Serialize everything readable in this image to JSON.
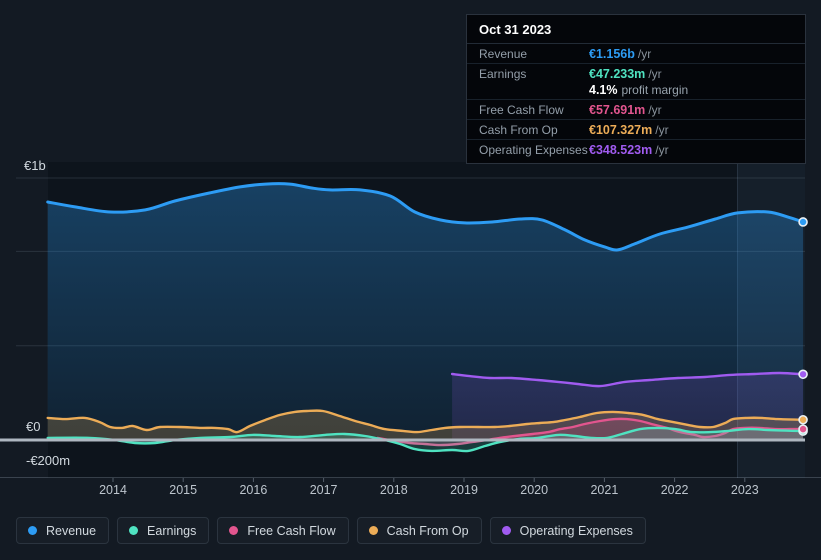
{
  "axis": {
    "y1": "€1b",
    "y0": "€0",
    "y_neg": "-€200m"
  },
  "tooltip": {
    "date": "Oct 31 2023",
    "rows": [
      {
        "label": "Revenue",
        "value": "€1.156b",
        "suffix": "/yr"
      },
      {
        "label": "Earnings",
        "value": "€47.233m",
        "suffix": "/yr",
        "sub_bold": "4.1%",
        "sub_text": "profit margin"
      },
      {
        "label": "Free Cash Flow",
        "value": "€57.691m",
        "suffix": "/yr"
      },
      {
        "label": "Cash From Op",
        "value": "€107.327m",
        "suffix": "/yr"
      },
      {
        "label": "Operating Expenses",
        "value": "€348.523m",
        "suffix": "/yr"
      }
    ]
  },
  "legend": [
    {
      "label": "Revenue"
    },
    {
      "label": "Earnings"
    },
    {
      "label": "Free Cash Flow"
    },
    {
      "label": "Cash From Op"
    },
    {
      "label": "Operating Expenses"
    }
  ],
  "chart_data": {
    "type": "area",
    "unit": "EUR millions",
    "title": "",
    "x_axis": {
      "ticks": [
        "2014",
        "2015",
        "2016",
        "2017",
        "2018",
        "2019",
        "2020",
        "2021",
        "2022",
        "2023"
      ],
      "range": [
        2013.05,
        2023.85
      ]
    },
    "y_axis": {
      "labels": [
        "€1b",
        "€0",
        "-€200m"
      ],
      "gridline_values_m": [
        1000,
        500,
        0,
        -200
      ],
      "grid": true
    },
    "legend_position": "bottom-left",
    "series": [
      {
        "name": "Revenue",
        "color": "#2D9CF4",
        "points": [
          [
            2013.07,
            1262
          ],
          [
            2013.46,
            1236
          ],
          [
            2013.96,
            1209
          ],
          [
            2014.46,
            1220
          ],
          [
            2014.88,
            1267
          ],
          [
            2015.38,
            1310
          ],
          [
            2015.81,
            1342
          ],
          [
            2016.17,
            1357
          ],
          [
            2016.52,
            1357
          ],
          [
            2016.83,
            1336
          ],
          [
            2017.09,
            1326
          ],
          [
            2017.52,
            1326
          ],
          [
            2017.95,
            1294
          ],
          [
            2018.3,
            1209
          ],
          [
            2018.66,
            1167
          ],
          [
            2019.01,
            1151
          ],
          [
            2019.4,
            1156
          ],
          [
            2019.8,
            1172
          ],
          [
            2020.11,
            1167
          ],
          [
            2020.44,
            1114
          ],
          [
            2020.72,
            1061
          ],
          [
            2021.01,
            1023
          ],
          [
            2021.19,
            1008
          ],
          [
            2021.43,
            1040
          ],
          [
            2021.79,
            1092
          ],
          [
            2022.19,
            1129
          ],
          [
            2022.58,
            1172
          ],
          [
            2022.9,
            1204
          ],
          [
            2023.33,
            1209
          ],
          [
            2023.61,
            1183
          ],
          [
            2023.83,
            1156
          ]
        ]
      },
      {
        "name": "Earnings",
        "color": "#4FE3C1",
        "points": [
          [
            2013.07,
            11
          ],
          [
            2013.67,
            11
          ],
          [
            2014.03,
            0
          ],
          [
            2014.31,
            -16
          ],
          [
            2014.6,
            -16
          ],
          [
            2014.88,
            0
          ],
          [
            2015.24,
            11
          ],
          [
            2015.67,
            16
          ],
          [
            2015.99,
            27
          ],
          [
            2016.31,
            21
          ],
          [
            2016.66,
            16
          ],
          [
            2017.02,
            27
          ],
          [
            2017.3,
            32
          ],
          [
            2017.59,
            21
          ],
          [
            2017.87,
            0
          ],
          [
            2018.09,
            -21
          ],
          [
            2018.3,
            -48
          ],
          [
            2018.54,
            -58
          ],
          [
            2018.83,
            -53
          ],
          [
            2019.06,
            -58
          ],
          [
            2019.3,
            -32
          ],
          [
            2019.51,
            -11
          ],
          [
            2019.77,
            5
          ],
          [
            2020.05,
            11
          ],
          [
            2020.34,
            27
          ],
          [
            2020.58,
            21
          ],
          [
            2020.82,
            11
          ],
          [
            2021.04,
            11
          ],
          [
            2021.25,
            32
          ],
          [
            2021.51,
            58
          ],
          [
            2021.76,
            64
          ],
          [
            2022.01,
            58
          ],
          [
            2022.25,
            42
          ],
          [
            2022.51,
            42
          ],
          [
            2022.76,
            48
          ],
          [
            2023.05,
            58
          ],
          [
            2023.33,
            53
          ],
          [
            2023.58,
            50
          ],
          [
            2023.83,
            47.233
          ]
        ]
      },
      {
        "name": "Free Cash Flow",
        "color": "#E2558E",
        "points": [
          [
            2017.77,
            11
          ],
          [
            2018.02,
            -5
          ],
          [
            2018.23,
            -16
          ],
          [
            2018.44,
            -21
          ],
          [
            2018.66,
            -27
          ],
          [
            2018.91,
            -21
          ],
          [
            2019.11,
            -11
          ],
          [
            2019.33,
            0
          ],
          [
            2019.51,
            11
          ],
          [
            2019.73,
            21
          ],
          [
            2019.98,
            32
          ],
          [
            2020.2,
            42
          ],
          [
            2020.37,
            58
          ],
          [
            2020.55,
            69
          ],
          [
            2020.72,
            85
          ],
          [
            2020.94,
            101
          ],
          [
            2021.15,
            111
          ],
          [
            2021.32,
            111
          ],
          [
            2021.51,
            101
          ],
          [
            2021.72,
            80
          ],
          [
            2021.89,
            64
          ],
          [
            2022.08,
            42
          ],
          [
            2022.29,
            27
          ],
          [
            2022.4,
            16
          ],
          [
            2022.58,
            21
          ],
          [
            2022.72,
            37
          ],
          [
            2022.83,
            58
          ],
          [
            2023.0,
            64
          ],
          [
            2023.21,
            64
          ],
          [
            2023.43,
            58
          ],
          [
            2023.64,
            58
          ],
          [
            2023.83,
            57.691
          ]
        ]
      },
      {
        "name": "Cash From Op",
        "color": "#ECAC57",
        "points": [
          [
            2013.07,
            117
          ],
          [
            2013.32,
            111
          ],
          [
            2013.6,
            117
          ],
          [
            2013.81,
            95
          ],
          [
            2013.96,
            69
          ],
          [
            2014.13,
            64
          ],
          [
            2014.28,
            74
          ],
          [
            2014.48,
            53
          ],
          [
            2014.67,
            69
          ],
          [
            2014.95,
            69
          ],
          [
            2015.24,
            64
          ],
          [
            2015.45,
            64
          ],
          [
            2015.64,
            58
          ],
          [
            2015.77,
            42
          ],
          [
            2015.95,
            74
          ],
          [
            2016.17,
            106
          ],
          [
            2016.38,
            133
          ],
          [
            2016.59,
            149
          ],
          [
            2016.76,
            154
          ],
          [
            2016.99,
            154
          ],
          [
            2017.23,
            127
          ],
          [
            2017.45,
            101
          ],
          [
            2017.66,
            80
          ],
          [
            2017.87,
            58
          ],
          [
            2018.13,
            48
          ],
          [
            2018.33,
            42
          ],
          [
            2018.54,
            53
          ],
          [
            2018.73,
            64
          ],
          [
            2018.94,
            69
          ],
          [
            2019.2,
            69
          ],
          [
            2019.44,
            69
          ],
          [
            2019.65,
            74
          ],
          [
            2019.9,
            85
          ],
          [
            2020.08,
            90
          ],
          [
            2020.27,
            95
          ],
          [
            2020.44,
            106
          ],
          [
            2020.65,
            122
          ],
          [
            2020.89,
            143
          ],
          [
            2021.12,
            149
          ],
          [
            2021.34,
            143
          ],
          [
            2021.55,
            133
          ],
          [
            2021.76,
            111
          ],
          [
            2021.98,
            95
          ],
          [
            2022.19,
            80
          ],
          [
            2022.36,
            69
          ],
          [
            2022.55,
            69
          ],
          [
            2022.72,
            90
          ],
          [
            2022.83,
            111
          ],
          [
            2023.03,
            117
          ],
          [
            2023.24,
            117
          ],
          [
            2023.47,
            111
          ],
          [
            2023.83,
            107.327
          ]
        ]
      },
      {
        "name": "Operating Expenses",
        "color": "#A05BF0",
        "points": [
          [
            2018.83,
            350
          ],
          [
            2019.08,
            339
          ],
          [
            2019.37,
            329
          ],
          [
            2019.68,
            329
          ],
          [
            2020.05,
            318
          ],
          [
            2020.34,
            308
          ],
          [
            2020.62,
            297
          ],
          [
            2020.94,
            286
          ],
          [
            2021.29,
            308
          ],
          [
            2021.65,
            318
          ],
          [
            2022.05,
            329
          ],
          [
            2022.43,
            334
          ],
          [
            2022.79,
            345
          ],
          [
            2023.14,
            350
          ],
          [
            2023.5,
            355
          ],
          [
            2023.83,
            348.523
          ]
        ]
      }
    ]
  }
}
